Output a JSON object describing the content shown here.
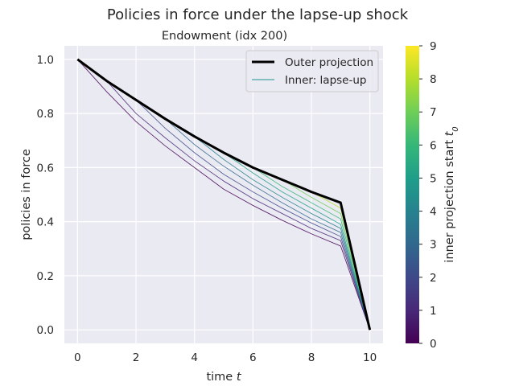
{
  "chart_data": {
    "type": "line",
    "title": "Policies in force under the lapse-up shock",
    "subtitle": "Endowment (idx 200)",
    "xlabel": "time t",
    "ylabel": "policies in force",
    "xlim": [
      -0.45,
      10.45
    ],
    "ylim": [
      -0.05,
      1.05
    ],
    "xticks": [
      0,
      2,
      4,
      6,
      8,
      10
    ],
    "yticks": [
      0.0,
      0.2,
      0.4,
      0.6,
      0.8,
      1.0
    ],
    "grid": true,
    "legend": {
      "placement": "top-right",
      "entries": [
        "Outer projection",
        "Inner: lapse-up"
      ]
    },
    "outer": {
      "name": "Outer projection",
      "color": "#000000",
      "x": [
        0,
        1,
        2,
        3,
        4,
        5,
        6,
        7,
        8,
        9,
        10
      ],
      "y": [
        1.0,
        0.92,
        0.85,
        0.78,
        0.715,
        0.655,
        0.6,
        0.555,
        0.51,
        0.47,
        0.0
      ]
    },
    "inner_series_name": "Inner: lapse-up",
    "inner_series": [
      {
        "t0": 0,
        "x": [
          0,
          1,
          2,
          3,
          4,
          5,
          6,
          7,
          8,
          9,
          10
        ],
        "y": [
          1.0,
          0.88,
          0.77,
          0.68,
          0.6,
          0.52,
          0.46,
          0.405,
          0.355,
          0.31,
          0.0
        ]
      },
      {
        "t0": 1,
        "x": [
          1,
          2,
          3,
          4,
          5,
          6,
          7,
          8,
          9,
          10
        ],
        "y": [
          0.92,
          0.8,
          0.71,
          0.625,
          0.55,
          0.485,
          0.43,
          0.375,
          0.33,
          0.0
        ]
      },
      {
        "t0": 2,
        "x": [
          2,
          3,
          4,
          5,
          6,
          7,
          8,
          9,
          10
        ],
        "y": [
          0.85,
          0.745,
          0.655,
          0.575,
          0.51,
          0.45,
          0.395,
          0.345,
          0.0
        ]
      },
      {
        "t0": 3,
        "x": [
          3,
          4,
          5,
          6,
          7,
          8,
          9,
          10
        ],
        "y": [
          0.78,
          0.685,
          0.605,
          0.535,
          0.47,
          0.41,
          0.36,
          0.0
        ]
      },
      {
        "t0": 4,
        "x": [
          4,
          5,
          6,
          7,
          8,
          9,
          10
        ],
        "y": [
          0.715,
          0.63,
          0.555,
          0.49,
          0.43,
          0.375,
          0.0
        ]
      },
      {
        "t0": 5,
        "x": [
          5,
          6,
          7,
          8,
          9,
          10
        ],
        "y": [
          0.655,
          0.58,
          0.51,
          0.45,
          0.39,
          0.0
        ]
      },
      {
        "t0": 6,
        "x": [
          6,
          7,
          8,
          9,
          10
        ],
        "y": [
          0.6,
          0.53,
          0.47,
          0.41,
          0.0
        ]
      },
      {
        "t0": 7,
        "x": [
          7,
          8,
          9,
          10
        ],
        "y": [
          0.555,
          0.49,
          0.43,
          0.0
        ]
      },
      {
        "t0": 8,
        "x": [
          8,
          9,
          10
        ],
        "y": [
          0.51,
          0.45,
          0.0
        ]
      },
      {
        "t0": 9,
        "x": [
          9,
          10
        ],
        "y": [
          0.47,
          0.0
        ]
      }
    ],
    "colorbar": {
      "label": "inner projection start t0",
      "colormap": "viridis",
      "range": [
        0,
        9
      ],
      "ticks": [
        0,
        1,
        2,
        3,
        4,
        5,
        6,
        7,
        8,
        9
      ]
    },
    "colors": {
      "axes_bg": "#eaeaf2",
      "grid": "#ffffff",
      "viridis_stops": [
        "#440154",
        "#482878",
        "#3e4989",
        "#31688e",
        "#26828e",
        "#1f9e89",
        "#35b779",
        "#6ece58",
        "#b5de2b",
        "#fde725"
      ]
    }
  }
}
